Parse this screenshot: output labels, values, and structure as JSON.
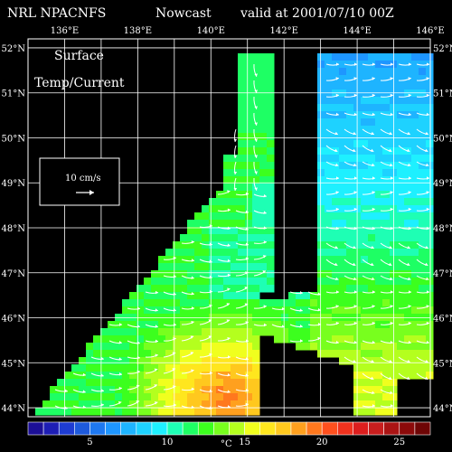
{
  "header": {
    "model": "NRL NPACNFS",
    "product": "Nowcast",
    "valid": "valid at 2001/07/10 00Z"
  },
  "map": {
    "lon_range": [
      135,
      146
    ],
    "lat_range": [
      43.8,
      52.2
    ],
    "lon_ticks": [
      "136°E",
      "138°E",
      "140°E",
      "142°E",
      "144°E",
      "146°E"
    ],
    "lat_ticks": [
      "44°N",
      "45°N",
      "46°N",
      "47°N",
      "48°N",
      "49°N",
      "50°N",
      "51°N",
      "52°N"
    ],
    "field_title_1": "Surface",
    "field_title_2": "Temp/Current",
    "vector_scale_label": "10 cm/s",
    "grid_color": "#ffffff",
    "land_color": "#000000",
    "vector_color": "#ffffff"
  },
  "colorbar": {
    "min": 1,
    "max": 27,
    "tick_labels": [
      "5",
      "10",
      "15",
      "20",
      "25"
    ],
    "unit": "°C",
    "colors": [
      "#1c0f96",
      "#1e1eb4",
      "#1e3cd2",
      "#1e5adc",
      "#1e78f0",
      "#1e96ff",
      "#1eb4ff",
      "#1ed2ff",
      "#1ef0ff",
      "#1effb4",
      "#1eff64",
      "#3cff1e",
      "#78ff1e",
      "#b4ff1e",
      "#f0ff1e",
      "#ffe61e",
      "#ffc81e",
      "#ffa01e",
      "#ff781e",
      "#ff501e",
      "#f0321e",
      "#dc1e1e",
      "#c81e1e",
      "#aa1414",
      "#8c0a0a",
      "#6e0505"
    ]
  }
}
